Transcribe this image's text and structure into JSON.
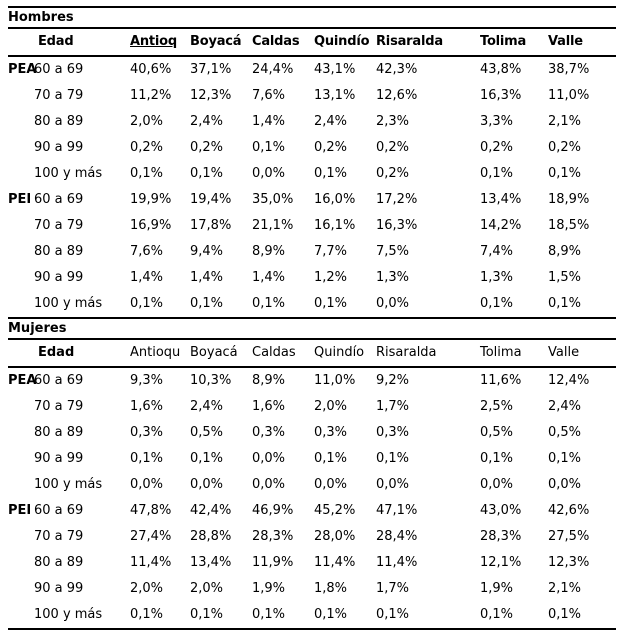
{
  "tables": [
    {
      "id": "hombres",
      "title": "Hombres",
      "edad_header": "Edad",
      "region_headers": [
        "Antioq",
        "Boyacá",
        "Caldas",
        "Quindío",
        "Risaralda",
        "Tolima",
        "Valle"
      ],
      "groups": [
        {
          "label": "PEA",
          "rows": [
            {
              "age": "60 a 69",
              "values": [
                "40,6%",
                "37,1%",
                "24,4%",
                "43,1%",
                "42,3%",
                "43,8%",
                "38,7%"
              ]
            },
            {
              "age": "70 a 79",
              "values": [
                "11,2%",
                "12,3%",
                "7,6%",
                "13,1%",
                "12,6%",
                "16,3%",
                "11,0%"
              ]
            },
            {
              "age": "80 a 89",
              "values": [
                "2,0%",
                "2,4%",
                "1,4%",
                "2,4%",
                "2,3%",
                "3,3%",
                "2,1%"
              ]
            },
            {
              "age": "90 a 99",
              "values": [
                "0,2%",
                "0,2%",
                "0,1%",
                "0,2%",
                "0,2%",
                "0,2%",
                "0,2%"
              ]
            },
            {
              "age": "100 y más",
              "values": [
                "0,1%",
                "0,1%",
                "0,0%",
                "0,1%",
                "0,2%",
                "0,1%",
                "0,1%"
              ]
            }
          ]
        },
        {
          "label": "PEI",
          "rows": [
            {
              "age": "60 a 69",
              "values": [
                "19,9%",
                "19,4%",
                "35,0%",
                "16,0%",
                "17,2%",
                "13,4%",
                "18,9%"
              ]
            },
            {
              "age": "70 a 79",
              "values": [
                "16,9%",
                "17,8%",
                "21,1%",
                "16,1%",
                "16,3%",
                "14,2%",
                "18,5%"
              ]
            },
            {
              "age": "80 a 89",
              "values": [
                "7,6%",
                "9,4%",
                "8,9%",
                "7,7%",
                "7,5%",
                "7,4%",
                "8,9%"
              ]
            },
            {
              "age": "90 a 99",
              "values": [
                "1,4%",
                "1,4%",
                "1,4%",
                "1,2%",
                "1,3%",
                "1,3%",
                "1,5%"
              ]
            },
            {
              "age": "100 y más",
              "values": [
                "0,1%",
                "0,1%",
                "0,1%",
                "0,1%",
                "0,0%",
                "0,1%",
                "0,1%"
              ]
            }
          ]
        }
      ]
    },
    {
      "id": "mujeres",
      "title": "Mujeres",
      "edad_header": "Edad",
      "region_headers": [
        "Antioqu",
        "Boyacá",
        "Caldas",
        "Quindío",
        "Risaralda",
        "Tolima",
        "Valle"
      ],
      "groups": [
        {
          "label": "PEA",
          "rows": [
            {
              "age": "60 a 69",
              "values": [
                "9,3%",
                "10,3%",
                "8,9%",
                "11,0%",
                "9,2%",
                "11,6%",
                "12,4%"
              ]
            },
            {
              "age": "70 a 79",
              "values": [
                "1,6%",
                "2,4%",
                "1,6%",
                "2,0%",
                "1,7%",
                "2,5%",
                "2,4%"
              ]
            },
            {
              "age": "80 a 89",
              "values": [
                "0,3%",
                "0,5%",
                "0,3%",
                "0,3%",
                "0,3%",
                "0,5%",
                "0,5%"
              ]
            },
            {
              "age": "90 a 99",
              "values": [
                "0,1%",
                "0,1%",
                "0,0%",
                "0,1%",
                "0,1%",
                "0,1%",
                "0,1%"
              ]
            },
            {
              "age": "100 y más",
              "values": [
                "0,0%",
                "0,0%",
                "0,0%",
                "0,0%",
                "0,0%",
                "0,0%",
                "0,0%"
              ]
            }
          ]
        },
        {
          "label": "PEI",
          "rows": [
            {
              "age": "60 a 69",
              "values": [
                "47,8%",
                "42,4%",
                "46,9%",
                "45,2%",
                "47,1%",
                "43,0%",
                "42,6%"
              ]
            },
            {
              "age": "70 a 79",
              "values": [
                "27,4%",
                "28,8%",
                "28,3%",
                "28,0%",
                "28,4%",
                "28,3%",
                "27,5%"
              ]
            },
            {
              "age": "80 a 89",
              "values": [
                "11,4%",
                "13,4%",
                "11,9%",
                "11,4%",
                "11,4%",
                "12,1%",
                "12,3%"
              ]
            },
            {
              "age": "90 a 99",
              "values": [
                "2,0%",
                "2,0%",
                "1,9%",
                "1,8%",
                "1,7%",
                "1,9%",
                "2,1%"
              ]
            },
            {
              "age": "100 y más",
              "values": [
                "0,1%",
                "0,1%",
                "0,1%",
                "0,1%",
                "0,1%",
                "0,1%",
                "0,1%"
              ]
            }
          ]
        }
      ]
    }
  ]
}
